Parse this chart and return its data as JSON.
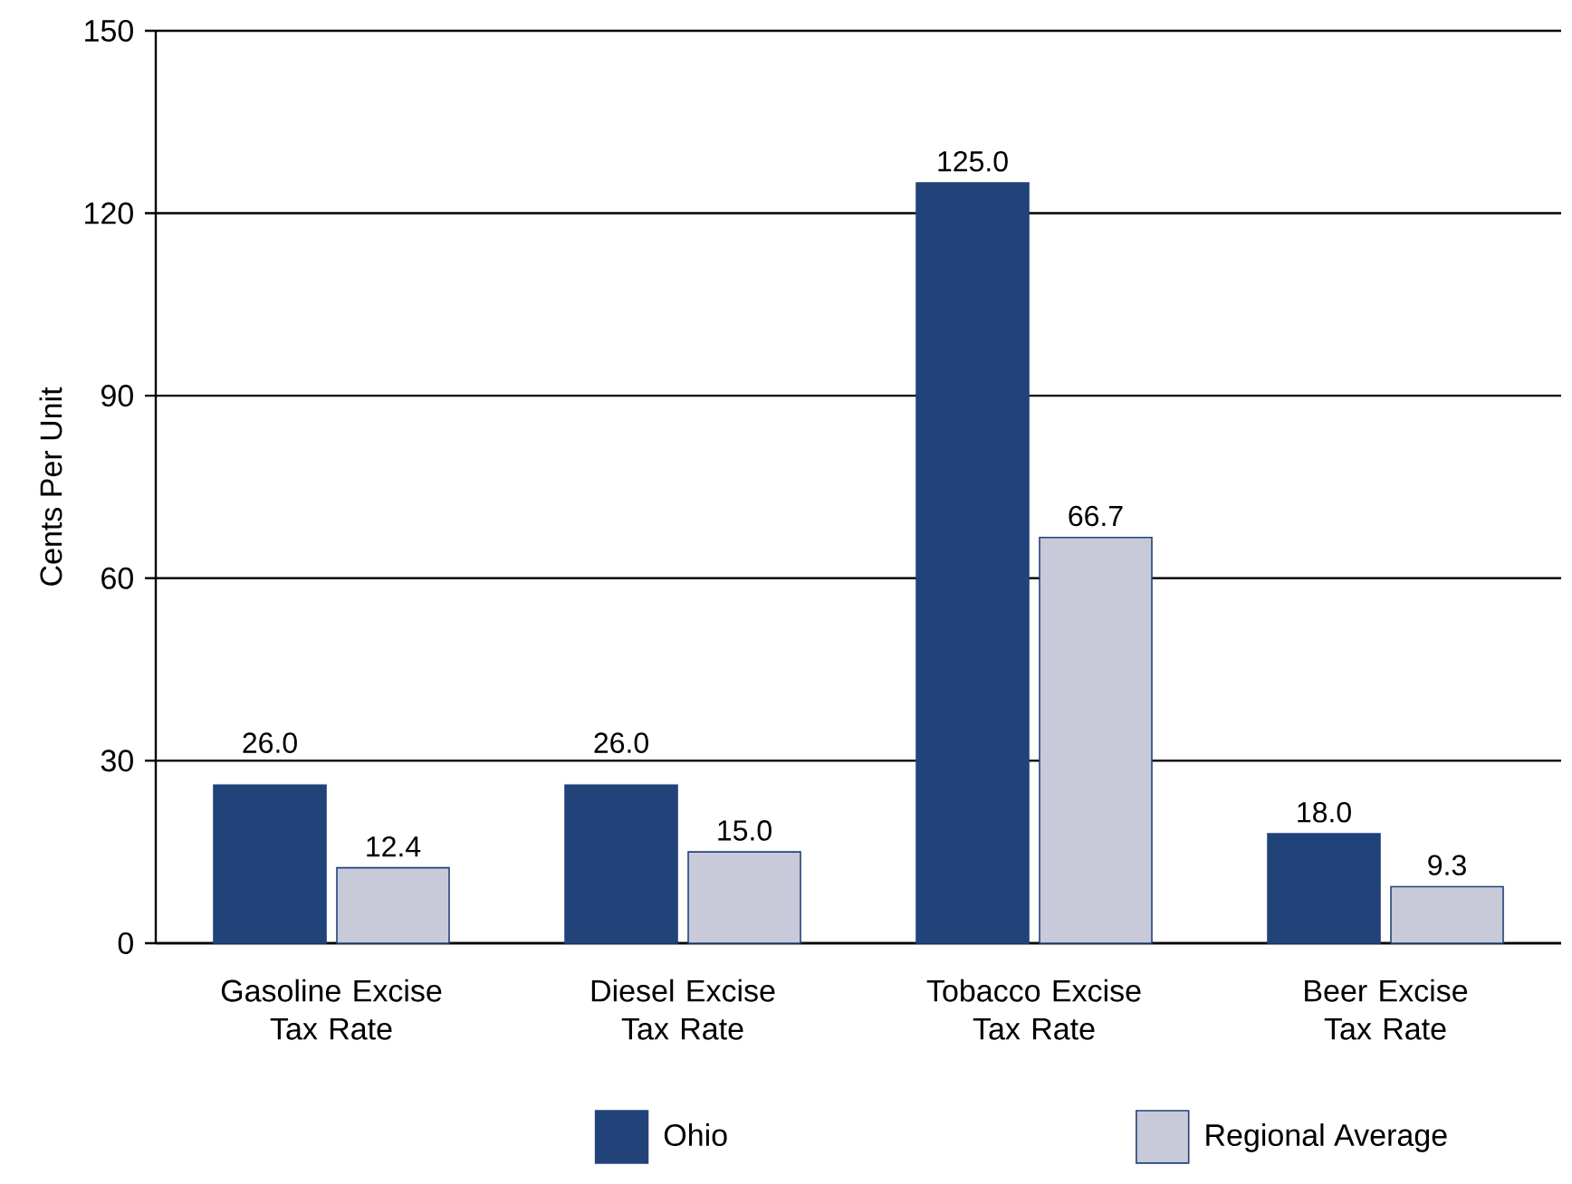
{
  "chart_data": {
    "type": "bar",
    "ylabel": "Cents Per Unit",
    "categories": [
      "Gasoline Excise Tax Rate",
      "Diesel Excise Tax Rate",
      "Tobacco Excise Tax Rate",
      "Beer Excise Tax Rate"
    ],
    "series": [
      {
        "name": "Ohio",
        "color": "#22437a",
        "values": [
          26.0,
          26.0,
          125.0,
          18.0
        ],
        "value_labels": [
          "26.0",
          "26.0",
          "125.0",
          "18.0"
        ]
      },
      {
        "name": "Regional Average",
        "color": "#c8c9d9",
        "values": [
          12.4,
          15.0,
          66.7,
          9.3
        ],
        "value_labels": [
          "12.4",
          "15.0",
          "66.7",
          "9.3"
        ]
      }
    ],
    "ylim": [
      0,
      150
    ],
    "yticks": [
      0,
      30,
      60,
      90,
      120,
      150
    ],
    "grid": "y",
    "legend": "bottom"
  }
}
